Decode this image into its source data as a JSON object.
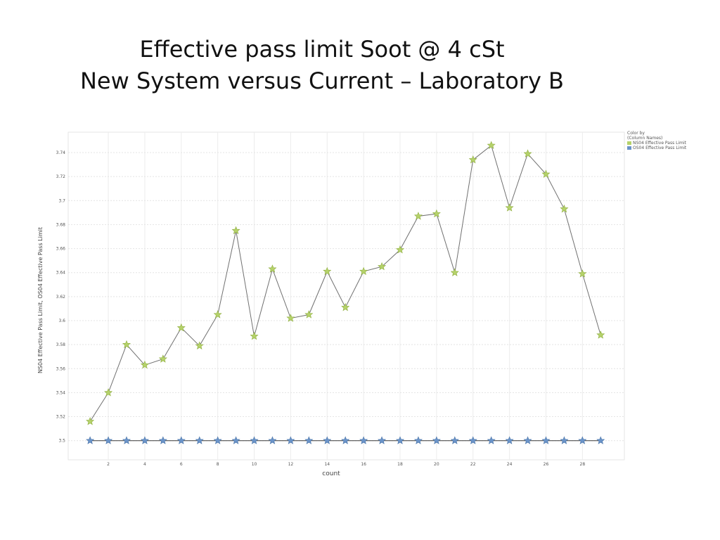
{
  "slide": {
    "title_line1": "Effective pass limit Soot @ 4 cSt",
    "title_line2": "New System versus Current – Laboratory B"
  },
  "legend": {
    "heading_line1": "Color by",
    "heading_line2": "(Column Names)",
    "items": [
      {
        "label": "NS04 Effective Pass Limit",
        "color": "#b5d26a"
      },
      {
        "label": "OS04 Effective Pass Limit",
        "color": "#6a93c8"
      }
    ]
  },
  "chart_data": {
    "type": "line",
    "xlabel": "count",
    "ylabel": "NS04 Effective Pass Limit, OS04 Effective Pass Limit",
    "xlim": [
      -0.2,
      30.3
    ],
    "ylim": [
      3.484,
      3.757
    ],
    "x_ticks": [
      2,
      4,
      6,
      8,
      10,
      12,
      14,
      16,
      18,
      20,
      22,
      24,
      26,
      28
    ],
    "y_ticks": [
      3.5,
      3.52,
      3.54,
      3.56,
      3.58,
      3.6,
      3.62,
      3.64,
      3.66,
      3.68,
      3.7,
      3.72,
      3.74
    ],
    "y_tick_labels": [
      "3.5",
      "3.52",
      "3.54",
      "3.56",
      "3.58",
      "3.6",
      "3.62",
      "3.64",
      "3.66",
      "3.68",
      "3.7",
      "3.72",
      "3.74"
    ],
    "grid": true,
    "legend_position": "top-right",
    "marker": "star",
    "x": [
      1,
      2,
      3,
      4,
      5,
      6,
      7,
      8,
      9,
      10,
      11,
      12,
      13,
      14,
      15,
      16,
      17,
      18,
      19,
      20,
      21,
      22,
      23,
      24,
      25,
      26,
      27,
      28,
      29
    ],
    "series": [
      {
        "name": "NS04 Effective Pass Limit",
        "color": "#b5d26a",
        "values": [
          3.516,
          3.54,
          3.58,
          3.563,
          3.568,
          3.594,
          3.579,
          3.605,
          3.675,
          3.587,
          3.643,
          3.602,
          3.605,
          3.641,
          3.611,
          3.641,
          3.645,
          3.659,
          3.687,
          3.689,
          3.64,
          3.734,
          3.746,
          3.694,
          3.739,
          3.722,
          3.693,
          3.639,
          3.588
        ]
      },
      {
        "name": "OS04 Effective Pass Limit",
        "color": "#6a93c8",
        "values": [
          3.5,
          3.5,
          3.5,
          3.5,
          3.5,
          3.5,
          3.5,
          3.5,
          3.5,
          3.5,
          3.5,
          3.5,
          3.5,
          3.5,
          3.5,
          3.5,
          3.5,
          3.5,
          3.5,
          3.5,
          3.5,
          3.5,
          3.5,
          3.5,
          3.5,
          3.5,
          3.5,
          3.5,
          3.5
        ]
      }
    ]
  }
}
